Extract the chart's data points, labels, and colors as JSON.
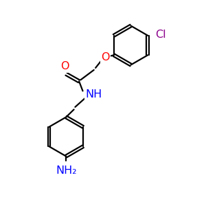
{
  "background_color": "#FFFFFF",
  "bond_color": "#000000",
  "O_color": "#FF0000",
  "N_color": "#0000FF",
  "Cl_color": "#8B008B",
  "figsize": [
    3.0,
    3.0
  ],
  "dpi": 100,
  "bond_lw": 1.6,
  "font_size": 11.5,
  "ring_r": 0.95,
  "xlim": [
    0,
    10
  ],
  "ylim": [
    0,
    10
  ]
}
